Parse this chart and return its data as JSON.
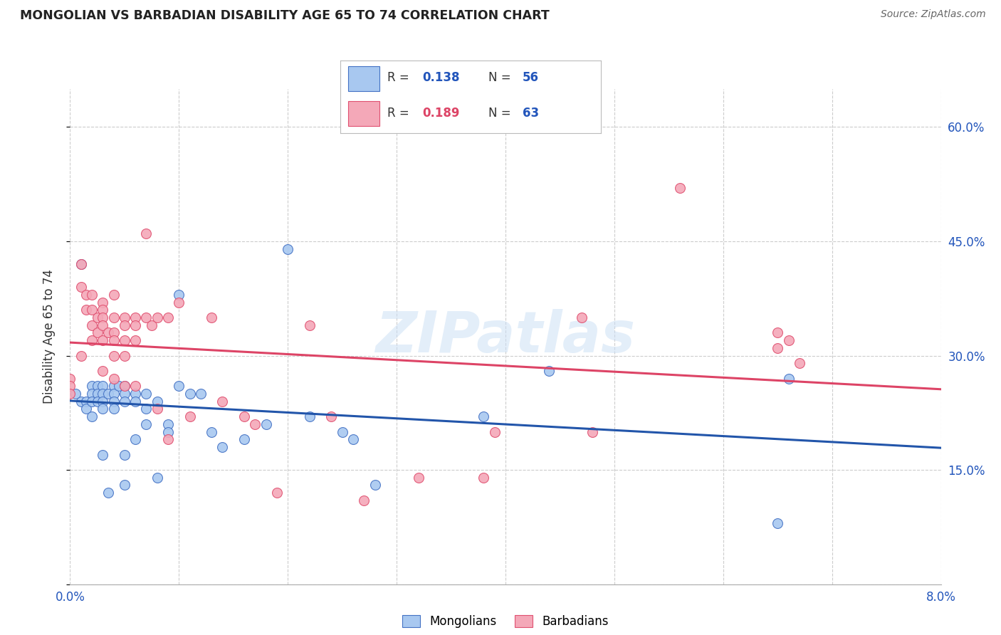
{
  "title": "MONGOLIAN VS BARBADIAN DISABILITY AGE 65 TO 74 CORRELATION CHART",
  "source": "Source: ZipAtlas.com",
  "ylabel": "Disability Age 65 to 74",
  "xlim": [
    0.0,
    0.08
  ],
  "ylim": [
    0.0,
    0.65
  ],
  "xticks": [
    0.0,
    0.01,
    0.02,
    0.03,
    0.04,
    0.05,
    0.06,
    0.07,
    0.08
  ],
  "xticklabels": [
    "0.0%",
    "",
    "",
    "",
    "",
    "",
    "",
    "",
    "8.0%"
  ],
  "ytick_positions": [
    0.0,
    0.15,
    0.3,
    0.45,
    0.6
  ],
  "yticklabels_right": [
    "",
    "15.0%",
    "30.0%",
    "45.0%",
    "60.0%"
  ],
  "mongolian_color": "#a8c8f0",
  "barbadian_color": "#f4a8b8",
  "mongolian_edge_color": "#4472c4",
  "barbadian_edge_color": "#e05070",
  "mongolian_line_color": "#2255aa",
  "barbadian_line_color": "#dd4466",
  "watermark": "ZIPatlas",
  "mongolian_x": [
    0.0005,
    0.001,
    0.001,
    0.0015,
    0.0015,
    0.002,
    0.002,
    0.002,
    0.002,
    0.0025,
    0.0025,
    0.0025,
    0.003,
    0.003,
    0.003,
    0.003,
    0.003,
    0.0035,
    0.0035,
    0.004,
    0.004,
    0.004,
    0.004,
    0.0045,
    0.005,
    0.005,
    0.005,
    0.005,
    0.005,
    0.006,
    0.006,
    0.006,
    0.007,
    0.007,
    0.007,
    0.008,
    0.008,
    0.009,
    0.009,
    0.01,
    0.01,
    0.011,
    0.012,
    0.013,
    0.014,
    0.016,
    0.018,
    0.02,
    0.022,
    0.025,
    0.026,
    0.028,
    0.038,
    0.044,
    0.065,
    0.066
  ],
  "mongolian_y": [
    0.25,
    0.42,
    0.24,
    0.24,
    0.23,
    0.26,
    0.25,
    0.24,
    0.22,
    0.26,
    0.25,
    0.24,
    0.26,
    0.25,
    0.24,
    0.23,
    0.17,
    0.25,
    0.12,
    0.26,
    0.25,
    0.24,
    0.23,
    0.26,
    0.26,
    0.25,
    0.24,
    0.17,
    0.13,
    0.25,
    0.24,
    0.19,
    0.25,
    0.23,
    0.21,
    0.24,
    0.14,
    0.21,
    0.2,
    0.38,
    0.26,
    0.25,
    0.25,
    0.2,
    0.18,
    0.19,
    0.21,
    0.44,
    0.22,
    0.2,
    0.19,
    0.13,
    0.22,
    0.28,
    0.08,
    0.27
  ],
  "barbadian_x": [
    0.0,
    0.0,
    0.0,
    0.001,
    0.001,
    0.001,
    0.0015,
    0.0015,
    0.002,
    0.002,
    0.002,
    0.002,
    0.0025,
    0.0025,
    0.003,
    0.003,
    0.003,
    0.003,
    0.003,
    0.003,
    0.0035,
    0.004,
    0.004,
    0.004,
    0.004,
    0.004,
    0.004,
    0.005,
    0.005,
    0.005,
    0.005,
    0.005,
    0.006,
    0.006,
    0.006,
    0.006,
    0.007,
    0.007,
    0.0075,
    0.008,
    0.008,
    0.009,
    0.009,
    0.01,
    0.011,
    0.013,
    0.014,
    0.016,
    0.017,
    0.019,
    0.022,
    0.024,
    0.027,
    0.032,
    0.038,
    0.039,
    0.047,
    0.048,
    0.056,
    0.065,
    0.065,
    0.066,
    0.067
  ],
  "barbadian_y": [
    0.27,
    0.26,
    0.25,
    0.42,
    0.39,
    0.3,
    0.38,
    0.36,
    0.38,
    0.36,
    0.34,
    0.32,
    0.35,
    0.33,
    0.37,
    0.36,
    0.35,
    0.34,
    0.32,
    0.28,
    0.33,
    0.38,
    0.35,
    0.33,
    0.32,
    0.3,
    0.27,
    0.35,
    0.34,
    0.32,
    0.3,
    0.26,
    0.35,
    0.34,
    0.32,
    0.26,
    0.46,
    0.35,
    0.34,
    0.35,
    0.23,
    0.35,
    0.19,
    0.37,
    0.22,
    0.35,
    0.24,
    0.22,
    0.21,
    0.12,
    0.34,
    0.22,
    0.11,
    0.14,
    0.14,
    0.2,
    0.35,
    0.2,
    0.52,
    0.33,
    0.31,
    0.32,
    0.29
  ]
}
